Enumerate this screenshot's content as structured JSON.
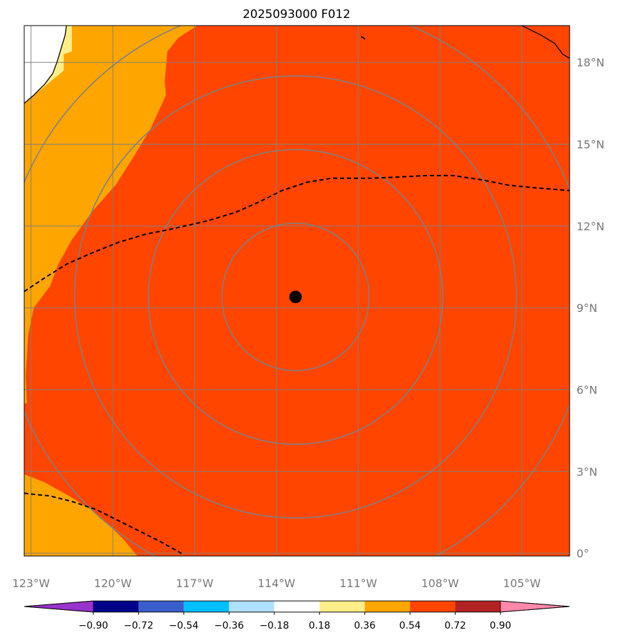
{
  "map": {
    "title": "2025093000 F012",
    "projection": "PlateCarree",
    "extent": {
      "lon_min": -123.25,
      "lon_max": -103.25,
      "lat_min": -0.1,
      "lat_max": 19.35
    },
    "storm_center": {
      "lon": -113.3,
      "lat": 9.4
    },
    "range_rings_deg": [
      2.7,
      5.4,
      8.1,
      10.8
    ],
    "lon_ticks": [
      {
        "value": -123,
        "label": "123°W"
      },
      {
        "value": -120,
        "label": "120°W"
      },
      {
        "value": -117,
        "label": "117°W"
      },
      {
        "value": -114,
        "label": "114°W"
      },
      {
        "value": -111,
        "label": "111°W"
      },
      {
        "value": -108,
        "label": "108°W"
      },
      {
        "value": -105,
        "label": "105°W"
      }
    ],
    "lat_ticks": [
      {
        "value": 0,
        "label": "0°"
      },
      {
        "value": 3,
        "label": "3°N"
      },
      {
        "value": 6,
        "label": "6°N"
      },
      {
        "value": 9,
        "label": "9°N"
      },
      {
        "value": 12,
        "label": "12°N"
      },
      {
        "value": 15,
        "label": "15°N"
      },
      {
        "value": 18,
        "label": "18°N"
      }
    ],
    "dashed_contours": [
      [
        [
          -123.25,
          9.6
        ],
        [
          -122.5,
          10.1
        ],
        [
          -121.7,
          10.6
        ],
        [
          -120.8,
          11.0
        ],
        [
          -119.8,
          11.4
        ],
        [
          -118.8,
          11.7
        ],
        [
          -117.8,
          11.9
        ],
        [
          -116.5,
          12.2
        ],
        [
          -115.5,
          12.5
        ],
        [
          -114.6,
          12.9
        ],
        [
          -113.8,
          13.3
        ],
        [
          -112.9,
          13.6
        ],
        [
          -112.0,
          13.75
        ],
        [
          -110.5,
          13.75
        ],
        [
          -109.5,
          13.8
        ],
        [
          -108.5,
          13.85
        ],
        [
          -107.5,
          13.85
        ],
        [
          -106.5,
          13.7
        ],
        [
          -105.5,
          13.5
        ],
        [
          -104.5,
          13.4
        ],
        [
          -103.25,
          13.3
        ]
      ],
      [
        [
          -123.25,
          2.2
        ],
        [
          -122.3,
          2.1
        ],
        [
          -121.5,
          1.9
        ],
        [
          -120.6,
          1.6
        ],
        [
          -119.8,
          1.2
        ],
        [
          -119.0,
          0.8
        ],
        [
          -118.2,
          0.4
        ],
        [
          -117.4,
          -0.05
        ]
      ]
    ],
    "coastlines": [
      [
        [
          -123.25,
          16.5
        ],
        [
          -122.9,
          16.8
        ],
        [
          -122.5,
          17.2
        ],
        [
          -122.2,
          17.6
        ],
        [
          -122.05,
          18.0
        ],
        [
          -121.9,
          18.5
        ],
        [
          -121.75,
          19.0
        ],
        [
          -121.7,
          19.35
        ]
      ],
      [
        [
          -103.25,
          18.15
        ],
        [
          -103.5,
          18.3
        ],
        [
          -103.8,
          18.7
        ],
        [
          -104.3,
          19.0
        ],
        [
          -104.7,
          19.2
        ],
        [
          -105.0,
          19.35
        ]
      ],
      [
        [
          -110.9,
          18.95
        ],
        [
          -110.75,
          18.85
        ],
        [
          -110.8,
          18.9
        ],
        [
          -110.9,
          18.95
        ]
      ]
    ],
    "fill_regions": [
      {
        "level": "0.36-0.54",
        "color": "#FFA500",
        "polygon": [
          [
            -123.25,
            19.35
          ],
          [
            -116.9,
            19.35
          ],
          [
            -117.6,
            18.9
          ],
          [
            -118.0,
            18.4
          ],
          [
            -118.1,
            17.3
          ],
          [
            -118.05,
            16.8
          ],
          [
            -118.6,
            15.6
          ],
          [
            -119.2,
            14.6
          ],
          [
            -119.9,
            13.5
          ],
          [
            -120.7,
            12.6
          ],
          [
            -121.5,
            11.5
          ],
          [
            -122.0,
            10.6
          ],
          [
            -122.3,
            9.8
          ],
          [
            -122.9,
            9.0
          ],
          [
            -123.1,
            8.0
          ],
          [
            -123.2,
            6.5
          ],
          [
            -123.15,
            5.5
          ],
          [
            -123.25,
            5.5
          ]
        ]
      },
      {
        "level": "0.36-0.54",
        "color": "#FFA500",
        "polygon": [
          [
            -123.25,
            2.9
          ],
          [
            -122.5,
            2.6
          ],
          [
            -121.6,
            2.1
          ],
          [
            -120.8,
            1.6
          ],
          [
            -120.2,
            1.1
          ],
          [
            -119.6,
            0.5
          ],
          [
            -119.1,
            -0.1
          ],
          [
            -123.25,
            -0.1
          ]
        ]
      },
      {
        "level": "0.18-0.36",
        "color": "#FFEE88",
        "polygon": [
          [
            -123.25,
            16.5
          ],
          [
            -121.8,
            17.7
          ],
          [
            -121.8,
            18.3
          ],
          [
            -121.5,
            18.4
          ],
          [
            -121.5,
            19.35
          ],
          [
            -123.25,
            19.35
          ]
        ]
      },
      {
        "level": "-0.18-0.18",
        "color": "#FFFFFF",
        "polygon": [
          [
            -123.25,
            16.5
          ],
          [
            -122.9,
            16.8
          ],
          [
            -122.5,
            17.2
          ],
          [
            -122.2,
            17.6
          ],
          [
            -122.05,
            18.0
          ],
          [
            -121.9,
            18.5
          ],
          [
            -121.75,
            19.0
          ],
          [
            -121.7,
            19.35
          ],
          [
            -123.25,
            19.35
          ]
        ]
      }
    ]
  },
  "colorbar": {
    "colors": [
      "#9933CC",
      "#00008B",
      "#3A5FCD",
      "#00BFFF",
      "#B0E0FF",
      "#FFFFFF",
      "#FFEE88",
      "#FFA500",
      "#FF4500",
      "#B22222",
      "#FF88AA"
    ],
    "levels": [
      -0.9,
      -0.72,
      -0.54,
      -0.36,
      -0.18,
      0.18,
      0.36,
      0.54,
      0.72,
      0.9
    ],
    "tick_labels": [
      "−0.90",
      "−0.72",
      "−0.54",
      "−0.36",
      "−0.18",
      "0.18",
      "0.36",
      "0.54",
      "0.72",
      "0.90"
    ]
  },
  "colors": {
    "background_field": "#FF4500",
    "grid": "#808080",
    "rings": "#808080",
    "contour": "#000000",
    "center_marker": "#000000"
  }
}
